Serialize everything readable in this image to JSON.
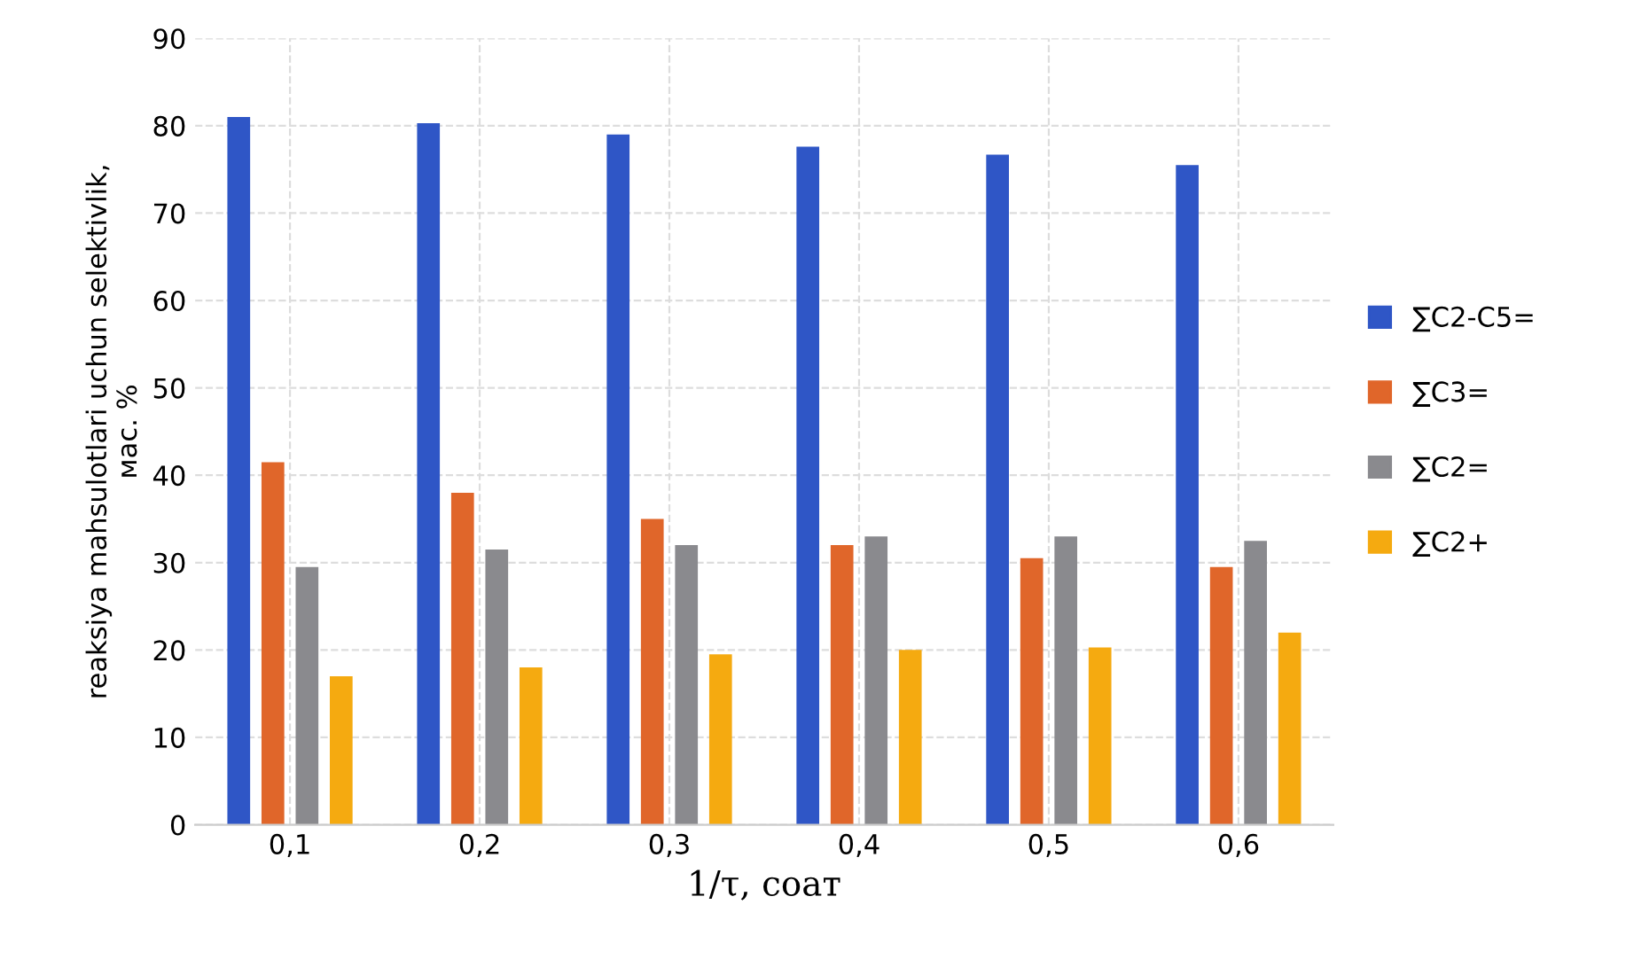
{
  "chart_data": {
    "type": "bar",
    "xlabel": "1/τ, соат",
    "ylabel": "reaksiya mahsulotlari uchun selektivlik,\nмас. %",
    "categories": [
      "0,1",
      "0,2",
      "0,3",
      "0,4",
      "0,5",
      "0,6"
    ],
    "series": [
      {
        "name": "∑C2-C5=",
        "color": "#2f56c6",
        "values": [
          81,
          80.3,
          79,
          77.6,
          76.7,
          75.5
        ]
      },
      {
        "name": "∑C3=",
        "color": "#e0662a",
        "values": [
          41.5,
          38,
          35,
          32,
          30.5,
          29.5
        ]
      },
      {
        "name": "∑C2=",
        "color": "#8a8a8e",
        "values": [
          29.5,
          31.5,
          32,
          33,
          33,
          32.5
        ]
      },
      {
        "name": "∑C2+",
        "color": "#f5aa10",
        "values": [
          17,
          18,
          19.5,
          20,
          20.3,
          22
        ]
      }
    ],
    "ylim": [
      0,
      90
    ],
    "yticks": [
      0,
      10,
      20,
      30,
      40,
      50,
      60,
      70,
      80,
      90
    ],
    "grid": true,
    "legend": "right"
  }
}
